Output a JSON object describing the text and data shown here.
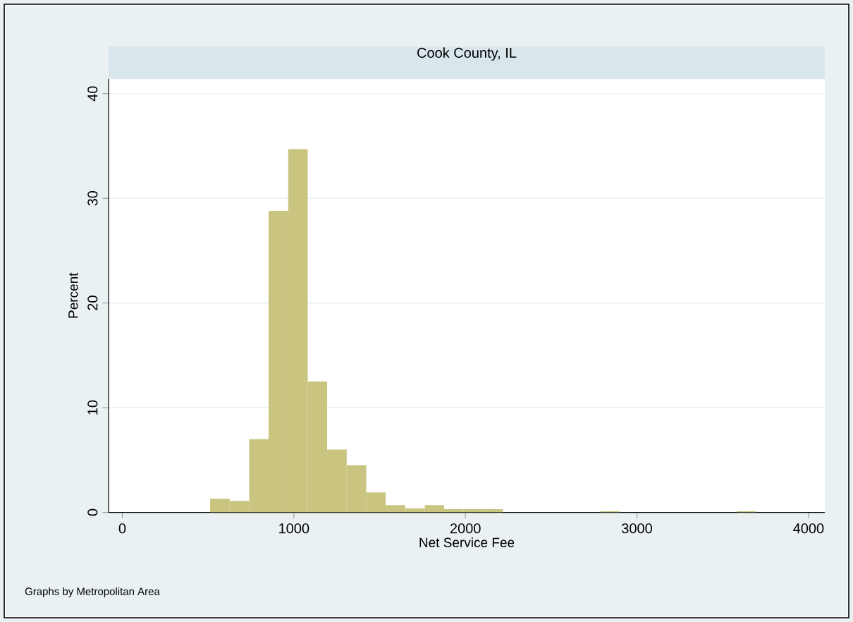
{
  "chart_data": {
    "type": "histogram",
    "title": "Cook County, IL",
    "xlabel": "Net Service Fee",
    "ylabel": "Percent",
    "bins": [
      512,
      626,
      740,
      853,
      967,
      1081,
      1194,
      1308,
      1422,
      1535,
      1649,
      1763,
      1876,
      1990,
      2104,
      2218,
      2331,
      2445,
      2559,
      2672,
      2786,
      2900,
      3013,
      3127,
      3241,
      3354,
      3468,
      3582,
      3695
    ],
    "values": [
      1.3,
      1.1,
      7.0,
      28.8,
      34.7,
      12.5,
      6.0,
      4.5,
      1.9,
      0.7,
      0.4,
      0.7,
      0.3,
      0.3,
      0.3,
      0,
      0,
      0,
      0,
      0,
      0.1,
      0,
      0,
      0,
      0,
      0,
      0,
      0.1
    ],
    "color": "#c9c47f",
    "xlim": [
      -80,
      4095
    ],
    "ylim": [
      0,
      41.4
    ],
    "xticks": [
      0,
      1000,
      2000,
      3000,
      4000
    ],
    "yticks": [
      0,
      10,
      20,
      30,
      40
    ],
    "grid": "y",
    "annotations": [
      "Graphs by Metropolitan Area"
    ]
  }
}
